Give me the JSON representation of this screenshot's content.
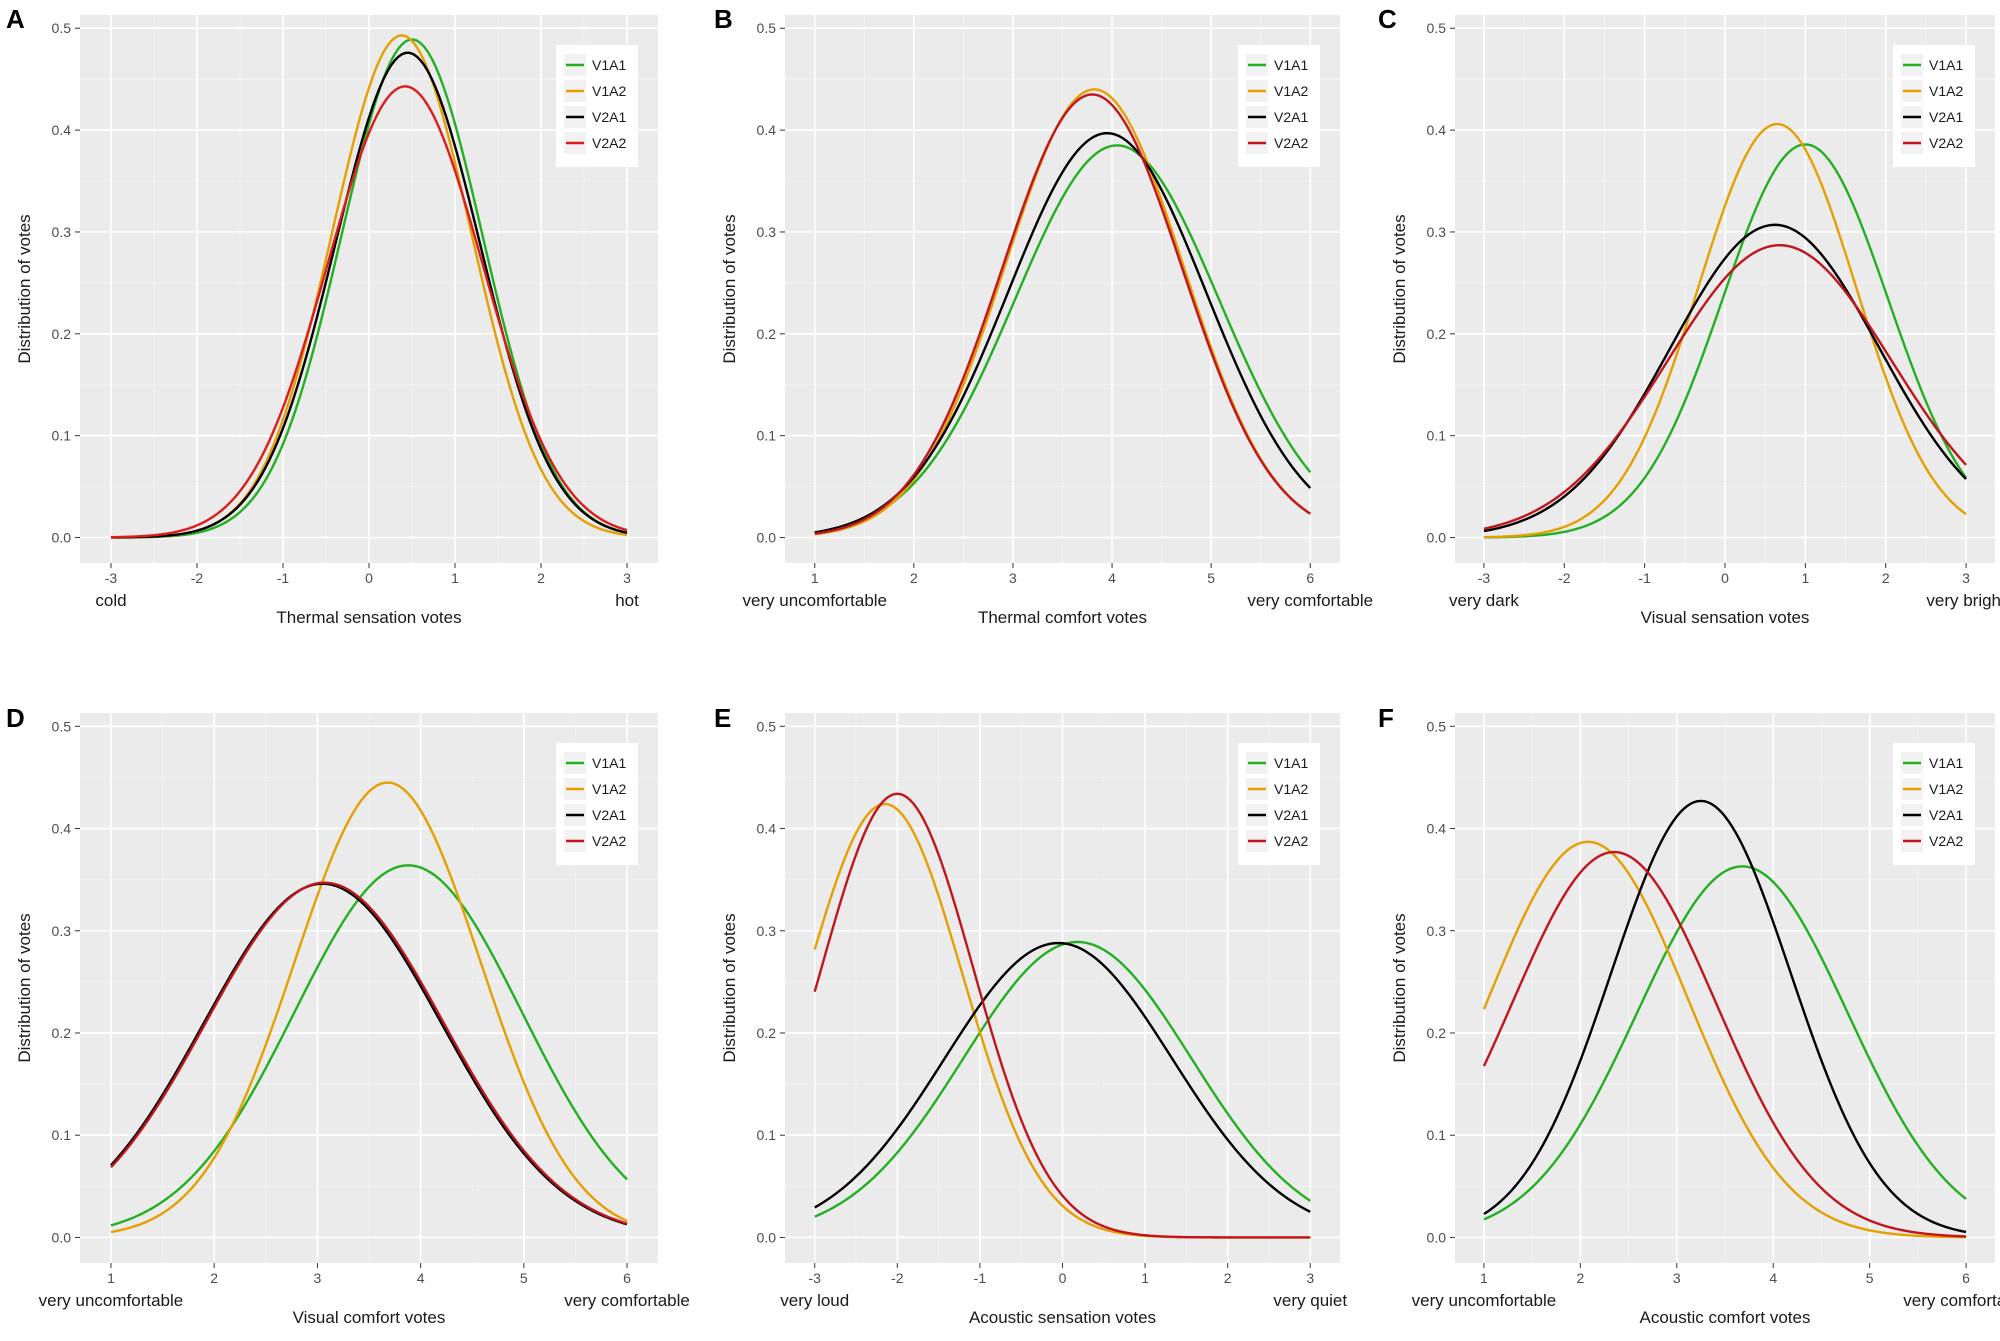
{
  "chart_data": [
    {
      "type": "line",
      "panel": "A",
      "xlabel": "Thermal sensation votes",
      "ylabel": "Distribution of votes",
      "xlim": [
        -3,
        3
      ],
      "ylim": [
        0,
        0.5
      ],
      "x_ticks": [
        -3,
        -2,
        -1,
        0,
        1,
        2,
        3
      ],
      "y_ticks": [
        "0.0",
        "0.1",
        "0.2",
        "0.3",
        "0.4",
        "0.5"
      ],
      "end_labels": {
        "left": "cold",
        "right": "hot"
      },
      "legend": [
        "V1A1",
        "V1A2",
        "V2A1",
        "V2A2"
      ],
      "series": [
        {
          "name": "V1A1",
          "color": "#22b022",
          "mean": 0.5,
          "sd": 0.82,
          "peak": 0.489
        },
        {
          "name": "V1A2",
          "color": "#e69f00",
          "mean": 0.38,
          "sd": 0.81,
          "peak": 0.493
        },
        {
          "name": "V2A1",
          "color": "#000000",
          "mean": 0.45,
          "sd": 0.84,
          "peak": 0.476
        },
        {
          "name": "V2A2",
          "color": "#dd1c1c",
          "mean": 0.42,
          "sd": 0.9,
          "peak": 0.443
        }
      ]
    },
    {
      "type": "line",
      "panel": "B",
      "xlabel": "Thermal comfort votes",
      "ylabel": "Distribution of votes",
      "xlim": [
        1,
        6
      ],
      "ylim": [
        0,
        0.5
      ],
      "x_ticks": [
        1,
        2,
        3,
        4,
        5,
        6
      ],
      "y_ticks": [
        "0.0",
        "0.1",
        "0.2",
        "0.3",
        "0.4",
        "0.5"
      ],
      "end_labels": {
        "left": "very uncomfortable",
        "right": "very comfortable"
      },
      "legend": [
        "V1A1",
        "V1A2",
        "V2A1",
        "V2A2"
      ],
      "series": [
        {
          "name": "V1A1",
          "color": "#22b022",
          "mean": 4.05,
          "sd": 1.03,
          "peak": 0.385
        },
        {
          "name": "V1A2",
          "color": "#e69f00",
          "mean": 3.82,
          "sd": 0.9,
          "peak": 0.44
        },
        {
          "name": "V2A1",
          "color": "#000000",
          "mean": 3.95,
          "sd": 1.0,
          "peak": 0.397
        },
        {
          "name": "V2A2",
          "color": "#c0151c",
          "mean": 3.8,
          "sd": 0.91,
          "peak": 0.435
        }
      ]
    },
    {
      "type": "line",
      "panel": "C",
      "xlabel": "Visual sensation votes",
      "ylabel": "Distribution of votes",
      "xlim": [
        -3,
        3
      ],
      "ylim": [
        0,
        0.5
      ],
      "x_ticks": [
        -3,
        -2,
        -1,
        0,
        1,
        2,
        3
      ],
      "y_ticks": [
        "0.0",
        "0.1",
        "0.2",
        "0.3",
        "0.4",
        "0.5"
      ],
      "end_labels": {
        "left": "very dark",
        "right": "very bright"
      },
      "legend": [
        "V1A1",
        "V1A2",
        "V2A1",
        "V2A2"
      ],
      "series": [
        {
          "name": "V1A1",
          "color": "#22b022",
          "mean": 1.0,
          "sd": 1.03,
          "peak": 0.386
        },
        {
          "name": "V1A2",
          "color": "#e69f00",
          "mean": 0.65,
          "sd": 0.98,
          "peak": 0.406
        },
        {
          "name": "V2A1",
          "color": "#000000",
          "mean": 0.62,
          "sd": 1.3,
          "peak": 0.307
        },
        {
          "name": "V2A2",
          "color": "#c0151c",
          "mean": 0.68,
          "sd": 1.39,
          "peak": 0.287
        }
      ]
    },
    {
      "type": "line",
      "panel": "D",
      "xlabel": "Visual comfort votes",
      "ylabel": "Distribution of votes",
      "xlim": [
        1,
        6
      ],
      "ylim": [
        0,
        0.5
      ],
      "x_ticks": [
        1,
        2,
        3,
        4,
        5,
        6
      ],
      "y_ticks": [
        "0.0",
        "0.1",
        "0.2",
        "0.3",
        "0.4",
        "0.5"
      ],
      "end_labels": {
        "left": "very uncomfortable",
        "right": "very comfortable"
      },
      "legend": [
        "V1A1",
        "V1A2",
        "V2A1",
        "V2A2"
      ],
      "series": [
        {
          "name": "V1A1",
          "color": "#22b022",
          "mean": 3.88,
          "sd": 1.1,
          "peak": 0.364
        },
        {
          "name": "V1A2",
          "color": "#e69f00",
          "mean": 3.68,
          "sd": 0.9,
          "peak": 0.445
        },
        {
          "name": "V2A1",
          "color": "#000000",
          "mean": 3.05,
          "sd": 1.15,
          "peak": 0.346
        },
        {
          "name": "V2A2",
          "color": "#c0151c",
          "mean": 3.07,
          "sd": 1.15,
          "peak": 0.347
        }
      ]
    },
    {
      "type": "line",
      "panel": "E",
      "xlabel": "Acoustic sensation votes",
      "ylabel": "Distribution of votes",
      "xlim": [
        -3,
        3
      ],
      "ylim": [
        0,
        0.5
      ],
      "x_ticks": [
        -3,
        -2,
        -1,
        0,
        1,
        2,
        3
      ],
      "y_ticks": [
        "0.0",
        "0.1",
        "0.2",
        "0.3",
        "0.4",
        "0.5"
      ],
      "end_labels": {
        "left": "very loud",
        "right": "very quiet"
      },
      "legend": [
        "V1A1",
        "V1A2",
        "V2A1",
        "V2A2"
      ],
      "series": [
        {
          "name": "V1A1",
          "color": "#22b022",
          "mean": 0.18,
          "sd": 1.38,
          "peak": 0.289
        },
        {
          "name": "V1A2",
          "color": "#e69f00",
          "mean": -2.15,
          "sd": 0.94,
          "peak": 0.424
        },
        {
          "name": "V2A1",
          "color": "#000000",
          "mean": -0.05,
          "sd": 1.38,
          "peak": 0.288
        },
        {
          "name": "V2A2",
          "color": "#c0151c",
          "mean": -2.0,
          "sd": 0.92,
          "peak": 0.434
        }
      ]
    },
    {
      "type": "line",
      "panel": "F",
      "xlabel": "Acoustic comfort votes",
      "ylabel": "Distribution of votes",
      "xlim": [
        1,
        6
      ],
      "ylim": [
        0,
        0.5
      ],
      "x_ticks": [
        1,
        2,
        3,
        4,
        5,
        6
      ],
      "y_ticks": [
        "0.0",
        "0.1",
        "0.2",
        "0.3",
        "0.4",
        "0.5"
      ],
      "end_labels": {
        "left": "very uncomfortable",
        "right": "very comfortable"
      },
      "legend": [
        "V1A1",
        "V1A2",
        "V2A1",
        "V2A2"
      ],
      "series": [
        {
          "name": "V1A1",
          "color": "#22b022",
          "mean": 3.68,
          "sd": 1.09,
          "peak": 0.363
        },
        {
          "name": "V1A2",
          "color": "#e69f00",
          "mean": 2.08,
          "sd": 1.03,
          "peak": 0.387
        },
        {
          "name": "V2A1",
          "color": "#000000",
          "mean": 3.25,
          "sd": 0.93,
          "peak": 0.427
        },
        {
          "name": "V2A2",
          "color": "#c0151c",
          "mean": 2.35,
          "sd": 1.06,
          "peak": 0.377
        }
      ]
    }
  ]
}
